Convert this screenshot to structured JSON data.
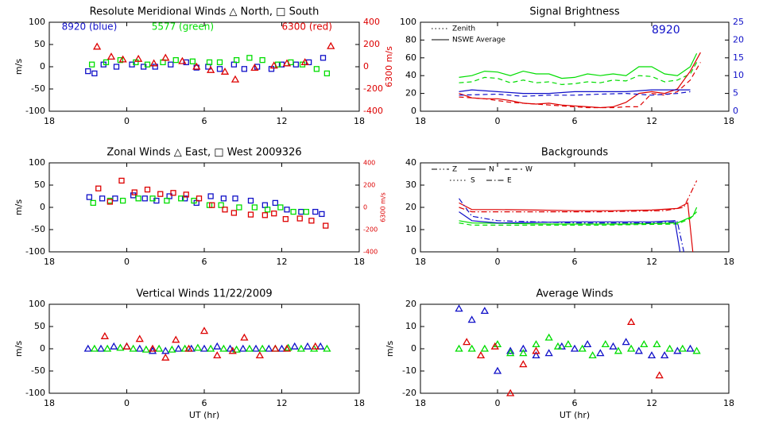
{
  "chart_data": [
    {
      "type": "scatter",
      "title": "Resolute Meridional Winds △ North, □ South",
      "ylabel": "m/s",
      "y2label": "6300 m/s",
      "y2color": "#dd0000",
      "xlim": [
        -6,
        18
      ],
      "xticks": [
        {
          "value": -6,
          "label": "18"
        },
        0,
        6,
        12,
        18
      ],
      "ylim": [
        -100,
        100
      ],
      "yticks": [
        -100,
        -50,
        0,
        50,
        100
      ],
      "y2lim": [
        -400,
        400
      ],
      "y2ticks": [
        -400,
        -200,
        0,
        200,
        400
      ],
      "series": [
        {
          "name": "8920 (blue)",
          "color": "#1010c8",
          "marker": "square",
          "x": [
            -3,
            -2.5,
            -1.8,
            -0.8,
            0.4,
            1.3,
            2.2,
            3.4,
            4.6,
            5.4,
            6.3,
            7.2,
            8.3,
            9.1,
            10.1,
            11.2,
            12,
            13.1,
            14.1,
            15.2
          ],
          "values": [
            -10,
            -15,
            5,
            0,
            5,
            0,
            0,
            5,
            10,
            -2,
            0,
            -5,
            5,
            -5,
            0,
            -5,
            5,
            5,
            10,
            20
          ]
        },
        {
          "name": "5577 (green)",
          "color": "#00dd00",
          "marker": "square",
          "x": [
            -2.7,
            -1.6,
            -0.5,
            0.7,
            1.6,
            2.8,
            3.8,
            5.1,
            6.4,
            7.2,
            8.5,
            9.5,
            10.5,
            11.7,
            12.7,
            13.6,
            14.7,
            15.5
          ],
          "values": [
            5,
            10,
            15,
            10,
            5,
            10,
            15,
            12,
            10,
            10,
            15,
            20,
            15,
            5,
            10,
            5,
            -5,
            -15
          ]
        },
        {
          "name": "6300 (red)",
          "color": "#dd0000",
          "marker": "triangle",
          "axis": "y2",
          "x": [
            -2.3,
            -1.2,
            -0.3,
            0.9,
            2.1,
            3,
            4.3,
            5.4,
            6.5,
            7.6,
            8.4,
            9.9,
            11.4,
            12.4,
            13.8,
            15.8
          ],
          "values": [
            180,
            90,
            65,
            70,
            30,
            80,
            50,
            0,
            -30,
            -45,
            -115,
            -10,
            10,
            30,
            40,
            185
          ]
        }
      ]
    },
    {
      "type": "scatter",
      "title": "Zonal Winds △ East, □ West 2009326",
      "ylabel": "m/s",
      "y2label": "6300 m/s",
      "y2color": "#dd0000",
      "xlim": [
        -6,
        18
      ],
      "xticks": [
        {
          "value": -6,
          "label": "18"
        },
        0,
        6,
        12,
        18
      ],
      "ylim": [
        -100,
        100
      ],
      "yticks": [
        -100,
        -50,
        0,
        50,
        100
      ],
      "y2lim": [
        -400,
        400
      ],
      "y2ticks": [
        -400,
        -200,
        0,
        200,
        400
      ],
      "series": [
        {
          "color": "#1010c8",
          "marker": "square",
          "x": [
            -2.9,
            -1.9,
            -0.9,
            0.5,
            1.4,
            2.3,
            3.3,
            4.5,
            5.4,
            6.5,
            7.5,
            8.4,
            9.6,
            10.7,
            11.5,
            12.4,
            13.5,
            14.6,
            15.1
          ],
          "values": [
            23,
            20,
            20,
            27,
            20,
            15,
            25,
            20,
            10,
            25,
            20,
            20,
            15,
            5,
            10,
            -5,
            -10,
            -10,
            -15
          ]
        },
        {
          "color": "#00dd00",
          "marker": "square",
          "x": [
            -2.6,
            -1.3,
            -0.3,
            0.9,
            2,
            3.1,
            4.2,
            5.2,
            6.4,
            7.3,
            8.7,
            9.9,
            10.9,
            11.9,
            12.9,
            13.9
          ],
          "values": [
            10,
            15,
            15,
            20,
            20,
            15,
            20,
            15,
            5,
            5,
            0,
            0,
            -5,
            0,
            -10,
            -10
          ]
        },
        {
          "color": "#dd0000",
          "marker": "square",
          "axis": "y2",
          "x": [
            -2.2,
            -1.3,
            -0.4,
            0.6,
            1.6,
            2.6,
            3.6,
            4.6,
            5.6,
            6.6,
            7.6,
            8.3,
            9.6,
            10.7,
            11.4,
            12.3,
            13.4,
            14.3,
            15.4
          ],
          "values": [
            170,
            50,
            240,
            135,
            160,
            120,
            130,
            115,
            80,
            20,
            -20,
            -50,
            -65,
            -70,
            -55,
            -105,
            -100,
            -120,
            -165
          ]
        }
      ]
    },
    {
      "type": "scatter",
      "title": "Vertical Winds 11/22/2009",
      "ylabel": "m/s",
      "xlabel": "UT (hr)",
      "xlim": [
        -6,
        18
      ],
      "xticks": [
        {
          "value": -6,
          "label": "18"
        },
        0,
        6,
        12,
        18
      ],
      "ylim": [
        -100,
        100
      ],
      "yticks": [
        -100,
        -50,
        0,
        50,
        100
      ],
      "series": [
        {
          "color": "#1010c8",
          "marker": "triangle",
          "x": [
            -3,
            -2,
            -1,
            0,
            1,
            2,
            3,
            4,
            5,
            6,
            7,
            8,
            9,
            10,
            11,
            12,
            13,
            14,
            15
          ],
          "values": [
            0,
            0,
            5,
            5,
            0,
            -5,
            -5,
            0,
            0,
            0,
            5,
            0,
            0,
            0,
            0,
            0,
            5,
            5,
            5
          ]
        },
        {
          "color": "#00dd00",
          "marker": "triangle",
          "x": [
            -2.5,
            -1.5,
            -0.5,
            0.5,
            1.5,
            2.5,
            3.5,
            4.5,
            5.5,
            6.5,
            7.5,
            8.5,
            9.5,
            10.5,
            11.5,
            12.5,
            13.5,
            14.5,
            15.5
          ],
          "values": [
            0,
            0,
            2,
            0,
            -2,
            0,
            -2,
            0,
            2,
            0,
            0,
            -2,
            0,
            0,
            0,
            2,
            0,
            0,
            0
          ]
        },
        {
          "color": "#dd0000",
          "marker": "triangle",
          "x": [
            -1.7,
            0,
            1,
            2,
            3,
            3.8,
            4.8,
            6,
            7,
            8.2,
            9.1,
            10.3,
            11.5,
            12.4,
            14.6
          ],
          "values": [
            28,
            5,
            22,
            0,
            -20,
            20,
            0,
            40,
            -15,
            -5,
            25,
            -15,
            0,
            0,
            5
          ]
        }
      ]
    },
    {
      "type": "line",
      "title": "Signal Brightness",
      "y2color": "#1010c8",
      "xlim": [
        -6,
        18
      ],
      "xticks": [
        {
          "value": -6,
          "label": "18"
        },
        0,
        6,
        12,
        18
      ],
      "ylim": [
        0,
        100
      ],
      "yticks": [
        0,
        20,
        40,
        60,
        80,
        100
      ],
      "y2lim": [
        0,
        25
      ],
      "y2ticks": [
        0,
        5,
        10,
        15,
        20,
        25
      ],
      "legend": [
        {
          "label": "Zenith",
          "dash": "dotted"
        },
        {
          "label": "NSWE Average",
          "dash": "solid"
        }
      ],
      "annotations": [
        {
          "text": "8920",
          "color": "#1010c8"
        }
      ],
      "series": [
        {
          "color": "#00dd00",
          "dash": "solid",
          "x": [
            -3,
            -2,
            -1,
            0,
            1,
            2,
            3,
            4,
            5,
            6,
            7,
            8,
            9,
            10,
            11,
            12,
            13,
            14,
            15,
            15.5
          ],
          "values": [
            38,
            40,
            45,
            44,
            40,
            45,
            42,
            42,
            37,
            38,
            42,
            40,
            42,
            40,
            50,
            50,
            42,
            40,
            50,
            65
          ]
        },
        {
          "color": "#00dd00",
          "dash": "dashed",
          "x": [
            -3,
            -2,
            -1,
            0,
            1,
            2,
            3,
            4,
            5,
            6,
            7,
            8,
            9,
            10,
            11,
            12,
            13,
            14,
            15,
            15.5
          ],
          "values": [
            32,
            33,
            38,
            37,
            32,
            35,
            32,
            33,
            30,
            31,
            33,
            32,
            35,
            34,
            40,
            39,
            33,
            35,
            42,
            55
          ]
        },
        {
          "color": "#dd0000",
          "dash": "solid",
          "x": [
            -3,
            -2,
            -1,
            0,
            1,
            2,
            3,
            4,
            5,
            6,
            7,
            8,
            9,
            10,
            11,
            12,
            13,
            14,
            15,
            15.8
          ],
          "values": [
            20,
            15,
            14,
            14,
            12,
            9,
            8,
            9,
            7,
            6,
            5,
            4,
            5,
            10,
            20,
            22,
            20,
            25,
            45,
            66
          ]
        },
        {
          "color": "#dd0000",
          "dash": "dashed",
          "x": [
            -3,
            -1,
            1,
            3,
            5,
            7,
            9,
            10,
            11,
            12,
            13,
            14,
            15,
            15.8
          ],
          "values": [
            16,
            14,
            10,
            8,
            6,
            4,
            4,
            5,
            5,
            20,
            18,
            22,
            35,
            55
          ]
        },
        {
          "color": "#1010c8",
          "dash": "solid",
          "axis": "y2",
          "x": [
            -3,
            -2,
            0,
            2,
            4,
            6,
            8,
            10,
            12,
            14,
            15
          ],
          "values": [
            5.5,
            6,
            5.5,
            5,
            5,
            5.5,
            5.5,
            5.5,
            6,
            6,
            6
          ]
        },
        {
          "color": "#1010c8",
          "dash": "dashed",
          "axis": "y2",
          "x": [
            -3,
            0,
            2,
            4,
            6,
            8,
            10,
            12,
            14,
            15
          ],
          "values": [
            4.5,
            4.8,
            4.2,
            4.5,
            4.5,
            4.8,
            5,
            4.5,
            5,
            5.5
          ]
        }
      ]
    },
    {
      "type": "line",
      "title": "Backgrounds",
      "xlim": [
        -6,
        18
      ],
      "xticks": [
        {
          "value": -6,
          "label": "18"
        },
        0,
        6,
        12,
        18
      ],
      "ylim": [
        0,
        40
      ],
      "yticks": [
        0,
        10,
        20,
        30,
        40
      ],
      "legend": [
        {
          "label": "Z",
          "dash": "dashdotdot"
        },
        {
          "label": "N",
          "dash": "solid"
        },
        {
          "label": "W",
          "dash": "dashed"
        },
        {
          "label": "S",
          "dash": "dotted"
        },
        {
          "label": "E",
          "dash": "dashdot"
        }
      ],
      "series": [
        {
          "color": "#dd0000",
          "dash": "solid",
          "x": [
            -3,
            -2,
            0,
            3,
            6,
            9,
            12,
            14,
            14.8,
            15.2
          ],
          "values": [
            22,
            19,
            19,
            18.8,
            18.5,
            18.5,
            18.8,
            19.5,
            22,
            0
          ]
        },
        {
          "color": "#dd0000",
          "dash": "dashdot",
          "x": [
            -3,
            -2,
            2,
            8,
            13,
            14.5,
            15.5
          ],
          "values": [
            20,
            18,
            18,
            18,
            18.5,
            20,
            32
          ]
        },
        {
          "color": "#00dd00",
          "dash": "solid",
          "x": [
            -3,
            -2,
            4,
            10,
            14,
            15.2,
            15.5
          ],
          "values": [
            14,
            13,
            12.5,
            12.5,
            13,
            16,
            20
          ]
        },
        {
          "color": "#00dd00",
          "dash": "dashed",
          "x": [
            -3,
            -2,
            8,
            14,
            15,
            15.5
          ],
          "values": [
            13,
            12,
            12,
            12.5,
            15,
            18
          ]
        },
        {
          "color": "#1010c8",
          "dash": "solid",
          "x": [
            -3,
            -2,
            0,
            6,
            12,
            13.8,
            14.2
          ],
          "values": [
            18,
            14,
            13,
            13.5,
            13.5,
            14,
            0
          ]
        },
        {
          "color": "#1010c8",
          "dash": "dashdot",
          "x": [
            -3,
            -2,
            0,
            6,
            12,
            14,
            14.5
          ],
          "values": [
            24,
            16,
            14,
            13,
            13,
            13.5,
            0
          ]
        }
      ]
    },
    {
      "type": "scatter",
      "title": "Average Winds",
      "ylabel": "m/s",
      "xlabel": "UT (hr)",
      "xlim": [
        -6,
        18
      ],
      "xticks": [
        {
          "value": -6,
          "label": "18"
        },
        0,
        6,
        12,
        18
      ],
      "ylim": [
        -20,
        20
      ],
      "yticks": [
        -20,
        -10,
        0,
        10,
        20
      ],
      "series": [
        {
          "color": "#1010c8",
          "marker": "triangle",
          "x": [
            -3,
            -2,
            -1,
            0,
            1,
            2,
            3,
            4,
            5,
            6,
            7,
            8,
            9,
            10,
            11,
            12,
            13,
            14,
            15
          ],
          "values": [
            18,
            13,
            17,
            -10,
            -1,
            0,
            -3,
            -2,
            1,
            0,
            2,
            -2,
            1,
            3,
            -1,
            -3,
            -3,
            -1,
            0
          ]
        },
        {
          "color": "#00dd00",
          "marker": "triangle",
          "x": [
            -3,
            -2,
            -1,
            0,
            1,
            2,
            3,
            4,
            4.7,
            5.5,
            6.6,
            7.4,
            8.4,
            9.4,
            10.4,
            11.4,
            12.4,
            13.4,
            14.4,
            15.5
          ],
          "values": [
            0,
            0,
            0,
            2,
            -2,
            -2,
            2,
            5,
            1,
            2,
            0,
            -3,
            2,
            -1,
            0,
            2,
            2,
            0,
            0,
            -1
          ]
        },
        {
          "color": "#dd0000",
          "marker": "triangle",
          "x": [
            -2.4,
            -1.3,
            -0.2,
            1,
            2,
            3,
            10.4,
            12.6
          ],
          "values": [
            3,
            -3,
            1,
            -20,
            -7,
            -1,
            12,
            -12
          ]
        }
      ]
    }
  ]
}
